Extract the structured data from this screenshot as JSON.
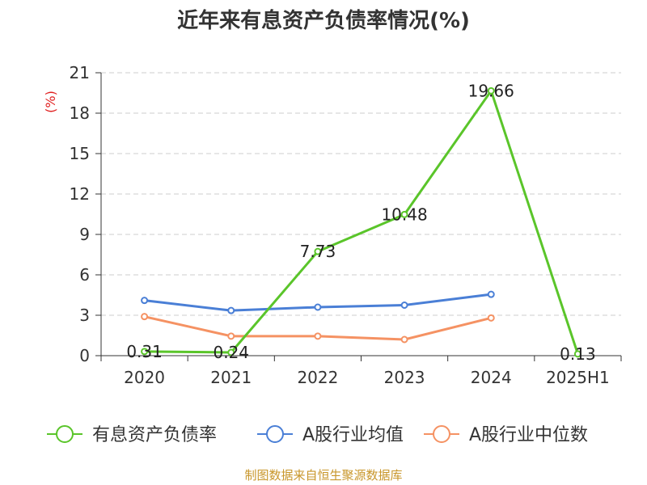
{
  "chart_data": {
    "type": "line",
    "title": "近年来有息资产负债率情况(%)",
    "ylabel": "(%)",
    "categories": [
      "2020",
      "2021",
      "2022",
      "2023",
      "2024",
      "2025H1"
    ],
    "ylim": [
      0,
      21
    ],
    "yticks": [
      0,
      3,
      6,
      9,
      12,
      15,
      18,
      21
    ],
    "grid": true,
    "legend_position": "bottom",
    "series": [
      {
        "name": "有息资产负债率",
        "color": "#5ac52a",
        "values": [
          0.31,
          0.24,
          7.73,
          10.48,
          19.66,
          0.13
        ],
        "labels": [
          "0.31",
          "0.24",
          "7.73",
          "10.48",
          "19.66",
          "0.13"
        ]
      },
      {
        "name": "A股行业均值",
        "color": "#4a7fd6",
        "values": [
          4.1,
          3.35,
          3.6,
          3.75,
          4.55,
          null
        ]
      },
      {
        "name": "A股行业中位数",
        "color": "#f59263",
        "values": [
          2.9,
          1.45,
          1.45,
          1.2,
          2.8,
          null
        ]
      }
    ],
    "source": "制图数据来自恒生聚源数据库"
  }
}
